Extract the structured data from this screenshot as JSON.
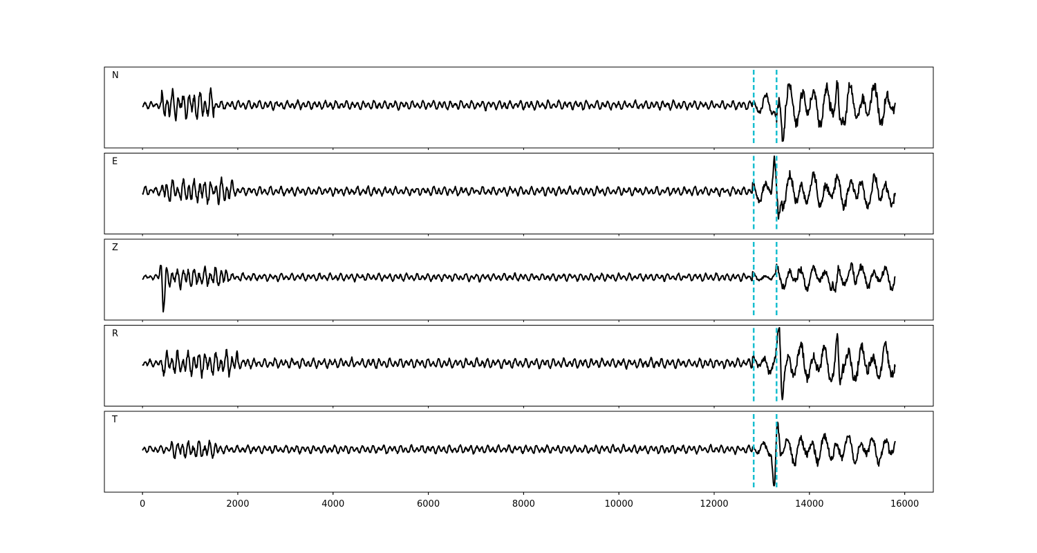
{
  "chart_data": {
    "type": "line",
    "title": "",
    "xlabel": "",
    "ylabel": "",
    "xlim": [
      -800,
      16600
    ],
    "xticks": [
      0,
      2000,
      4000,
      6000,
      8000,
      10000,
      12000,
      14000,
      16000
    ],
    "x_start": 0,
    "x_end": 15800,
    "grid": false,
    "trace_color": "#000000",
    "pick_color": "#17becf",
    "picks": [
      12830,
      13310
    ],
    "channels": [
      {
        "name": "N",
        "segments": [
          {
            "x0": 0,
            "x1": 400,
            "amp": 0.12
          },
          {
            "x0": 400,
            "x1": 1500,
            "amp": 0.45
          },
          {
            "x0": 1500,
            "x1": 12800,
            "amp": 0.14
          },
          {
            "x0": 12800,
            "x1": 13300,
            "amp": 0.32
          },
          {
            "x0": 13300,
            "x1": 15800,
            "amp": 0.68
          }
        ],
        "spikes": [
          {
            "x": 13310,
            "y": -0.45
          },
          {
            "x": 13440,
            "y": -0.85
          },
          {
            "x": 14600,
            "y": 0.85
          },
          {
            "x": 14630,
            "y": -0.95
          }
        ]
      },
      {
        "name": "E",
        "segments": [
          {
            "x0": 0,
            "x1": 400,
            "amp": 0.14
          },
          {
            "x0": 400,
            "x1": 1900,
            "amp": 0.38
          },
          {
            "x0": 1900,
            "x1": 12800,
            "amp": 0.14
          },
          {
            "x0": 12800,
            "x1": 13300,
            "amp": 0.35
          },
          {
            "x0": 13300,
            "x1": 15800,
            "amp": 0.55
          }
        ],
        "spikes": [
          {
            "x": 13260,
            "y": 0.95
          },
          {
            "x": 13350,
            "y": -0.85
          }
        ]
      },
      {
        "name": "Z",
        "segments": [
          {
            "x0": 0,
            "x1": 350,
            "amp": 0.08
          },
          {
            "x0": 350,
            "x1": 1800,
            "amp": 0.32
          },
          {
            "x0": 1800,
            "x1": 12800,
            "amp": 0.12
          },
          {
            "x0": 12800,
            "x1": 13300,
            "amp": 0.14
          },
          {
            "x0": 13300,
            "x1": 15800,
            "amp": 0.38
          }
        ],
        "spikes": [
          {
            "x": 400,
            "y": 0.75
          },
          {
            "x": 430,
            "y": -1.2
          },
          {
            "x": 14550,
            "y": -0.65
          },
          {
            "x": 14900,
            "y": 0.45
          }
        ]
      },
      {
        "name": "R",
        "segments": [
          {
            "x0": 0,
            "x1": 400,
            "amp": 0.12
          },
          {
            "x0": 400,
            "x1": 2000,
            "amp": 0.38
          },
          {
            "x0": 2000,
            "x1": 12800,
            "amp": 0.15
          },
          {
            "x0": 12800,
            "x1": 13300,
            "amp": 0.32
          },
          {
            "x0": 13300,
            "x1": 15800,
            "amp": 0.6
          }
        ],
        "spikes": [
          {
            "x": 13370,
            "y": 0.9
          },
          {
            "x": 13420,
            "y": -0.85
          },
          {
            "x": 14590,
            "y": 0.75
          },
          {
            "x": 14630,
            "y": -0.95
          }
        ]
      },
      {
        "name": "T",
        "segments": [
          {
            "x0": 0,
            "x1": 600,
            "amp": 0.12
          },
          {
            "x0": 600,
            "x1": 1600,
            "amp": 0.28
          },
          {
            "x0": 1600,
            "x1": 12800,
            "amp": 0.13
          },
          {
            "x0": 12800,
            "x1": 13300,
            "amp": 0.22
          },
          {
            "x0": 13300,
            "x1": 15800,
            "amp": 0.45
          }
        ],
        "spikes": [
          {
            "x": 13260,
            "y": -1.2
          },
          {
            "x": 13330,
            "y": 0.6
          }
        ]
      }
    ]
  }
}
